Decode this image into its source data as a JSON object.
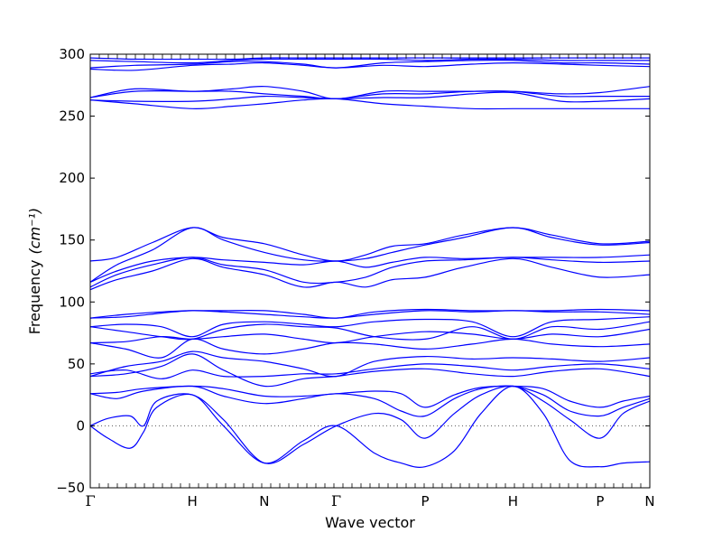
{
  "chart_data": {
    "type": "line",
    "title": "",
    "xlabel": "Wave vector",
    "ylabel": "Frequency",
    "ylabel_unit": "(cm⁻¹)",
    "ylim": [
      -50,
      300
    ],
    "yticks": [
      -50,
      0,
      50,
      100,
      150,
      200,
      250,
      300
    ],
    "xlim": [
      0,
      6.3
    ],
    "grid": false,
    "legend": "none",
    "line_color": "#0000ff",
    "zero_line": {
      "y": 0,
      "style": "dotted"
    },
    "symmetry_points": [
      {
        "label": "Γ",
        "x": 0.0
      },
      {
        "label": "H",
        "x": 1.15
      },
      {
        "label": "N",
        "x": 1.96
      },
      {
        "label": "Γ",
        "x": 2.77
      },
      {
        "label": "P",
        "x": 3.77
      },
      {
        "label": "H",
        "x": 4.76
      },
      {
        "label": "P",
        "x": 5.74
      },
      {
        "label": "N",
        "x": 6.3
      }
    ],
    "series": [
      {
        "x": [
          0,
          0.2,
          0.45,
          0.6,
          0.75,
          1.15,
          1.5,
          1.96,
          2.4,
          2.77,
          3.2,
          3.5,
          3.77,
          4.1,
          4.4,
          4.76,
          5.1,
          5.4,
          5.74,
          6.0,
          6.3
        ],
        "y": [
          0,
          -10,
          -18,
          -5,
          15,
          25,
          0,
          -30,
          -12,
          0,
          -22,
          -30,
          -33,
          -20,
          10,
          32,
          10,
          -28,
          -33,
          -30,
          -29
        ]
      },
      {
        "x": [
          0,
          0.2,
          0.45,
          0.6,
          0.75,
          1.15,
          1.5,
          1.96,
          2.4,
          2.77,
          3.2,
          3.5,
          3.77,
          4.1,
          4.4,
          4.76,
          5.1,
          5.4,
          5.74,
          6.0,
          6.3
        ],
        "y": [
          0,
          6,
          8,
          0,
          20,
          25,
          5,
          -30,
          -15,
          0,
          10,
          5,
          -10,
          10,
          25,
          32,
          20,
          5,
          -10,
          10,
          20
        ]
      },
      {
        "x": [
          0,
          0.3,
          0.6,
          1.15,
          1.5,
          1.96,
          2.4,
          2.77,
          3.2,
          3.5,
          3.77,
          4.1,
          4.4,
          4.76,
          5.1,
          5.4,
          5.74,
          6.0,
          6.3
        ],
        "y": [
          26,
          22,
          28,
          32,
          24,
          18,
          22,
          26,
          22,
          12,
          8,
          22,
          30,
          32,
          25,
          12,
          8,
          15,
          22
        ]
      },
      {
        "x": [
          0,
          0.3,
          0.6,
          1.15,
          1.5,
          1.96,
          2.4,
          2.77,
          3.2,
          3.5,
          3.77,
          4.1,
          4.4,
          4.76,
          5.1,
          5.4,
          5.74,
          6.0,
          6.3
        ],
        "y": [
          26,
          27,
          30,
          32,
          30,
          24,
          24,
          26,
          28,
          26,
          15,
          25,
          31,
          32,
          30,
          20,
          15,
          20,
          24
        ]
      },
      {
        "x": [
          0,
          0.4,
          0.8,
          1.15,
          1.5,
          1.96,
          2.4,
          2.77,
          3.2,
          3.77,
          4.3,
          4.76,
          5.2,
          5.74,
          6.3
        ],
        "y": [
          40,
          42,
          48,
          58,
          45,
          32,
          38,
          40,
          44,
          46,
          42,
          40,
          44,
          46,
          40
        ]
      },
      {
        "x": [
          0,
          0.4,
          0.8,
          1.15,
          1.5,
          1.96,
          2.4,
          2.77,
          3.2,
          3.77,
          4.3,
          4.76,
          5.2,
          5.74,
          6.3
        ],
        "y": [
          42,
          45,
          38,
          45,
          40,
          40,
          42,
          42,
          46,
          50,
          48,
          45,
          48,
          50,
          46
        ]
      },
      {
        "x": [
          0,
          0.4,
          0.8,
          1.15,
          1.5,
          1.96,
          2.4,
          2.77,
          3.2,
          3.77,
          4.3,
          4.76,
          5.2,
          5.74,
          6.3
        ],
        "y": [
          40,
          48,
          52,
          60,
          55,
          52,
          46,
          40,
          52,
          56,
          54,
          55,
          54,
          52,
          55
        ]
      },
      {
        "x": [
          0,
          0.4,
          0.8,
          1.15,
          1.5,
          1.96,
          2.4,
          2.77,
          3.2,
          3.77,
          4.3,
          4.76,
          5.2,
          5.74,
          6.3
        ],
        "y": [
          67,
          62,
          55,
          70,
          62,
          58,
          62,
          67,
          66,
          62,
          66,
          70,
          66,
          64,
          66
        ]
      },
      {
        "x": [
          0,
          0.4,
          0.8,
          1.15,
          1.5,
          1.96,
          2.4,
          2.77,
          3.2,
          3.77,
          4.3,
          4.76,
          5.2,
          5.74,
          6.3
        ],
        "y": [
          67,
          68,
          72,
          70,
          72,
          74,
          70,
          67,
          72,
          76,
          74,
          70,
          74,
          72,
          78
        ]
      },
      {
        "x": [
          0,
          0.4,
          0.8,
          1.15,
          1.5,
          1.96,
          2.4,
          2.77,
          3.2,
          3.77,
          4.3,
          4.76,
          5.2,
          5.74,
          6.3
        ],
        "y": [
          80,
          76,
          72,
          70,
          78,
          82,
          80,
          79,
          72,
          70,
          80,
          70,
          80,
          78,
          84
        ]
      },
      {
        "x": [
          0,
          0.4,
          0.8,
          1.15,
          1.5,
          1.96,
          2.4,
          2.77,
          3.2,
          3.77,
          4.3,
          4.76,
          5.2,
          5.74,
          6.3
        ],
        "y": [
          80,
          82,
          80,
          72,
          82,
          84,
          82,
          80,
          84,
          86,
          84,
          72,
          84,
          86,
          88
        ]
      },
      {
        "x": [
          0,
          0.4,
          0.8,
          1.15,
          1.5,
          1.96,
          2.4,
          2.77,
          3.2,
          3.77,
          4.3,
          4.76,
          5.2,
          5.74,
          6.3
        ],
        "y": [
          87,
          88,
          91,
          93,
          92,
          90,
          88,
          87,
          90,
          93,
          92,
          93,
          92,
          92,
          90
        ]
      },
      {
        "x": [
          0,
          0.4,
          0.8,
          1.15,
          1.5,
          1.96,
          2.4,
          2.77,
          3.2,
          3.77,
          4.3,
          4.76,
          5.2,
          5.74,
          6.3
        ],
        "y": [
          87,
          90,
          92,
          93,
          93,
          93,
          90,
          87,
          92,
          94,
          93,
          93,
          93,
          94,
          93
        ]
      },
      {
        "x": [
          0,
          0.3,
          0.7,
          1.15,
          1.5,
          1.96,
          2.4,
          2.77,
          3.1,
          3.4,
          3.77,
          4.2,
          4.76,
          5.2,
          5.74,
          6.3
        ],
        "y": [
          110,
          118,
          125,
          135,
          128,
          122,
          112,
          116,
          112,
          118,
          120,
          128,
          135,
          128,
          120,
          122
        ]
      },
      {
        "x": [
          0,
          0.3,
          0.7,
          1.15,
          1.5,
          1.96,
          2.4,
          2.77,
          3.1,
          3.4,
          3.77,
          4.2,
          4.76,
          5.2,
          5.74,
          6.3
        ],
        "y": [
          112,
          122,
          130,
          136,
          130,
          126,
          116,
          116,
          120,
          128,
          133,
          134,
          136,
          134,
          132,
          133
        ]
      },
      {
        "x": [
          0,
          0.3,
          0.7,
          1.15,
          1.5,
          1.96,
          2.4,
          2.77,
          3.1,
          3.4,
          3.77,
          4.2,
          4.76,
          5.2,
          5.74,
          6.3
        ],
        "y": [
          116,
          125,
          133,
          136,
          134,
          132,
          130,
          133,
          128,
          132,
          136,
          135,
          136,
          136,
          136,
          138
        ]
      },
      {
        "x": [
          0,
          0.3,
          0.7,
          1.15,
          1.5,
          1.96,
          2.4,
          2.77,
          3.1,
          3.4,
          3.77,
          4.2,
          4.76,
          5.2,
          5.74,
          6.3
        ],
        "y": [
          116,
          130,
          142,
          160,
          150,
          140,
          134,
          133,
          135,
          140,
          146,
          152,
          160,
          152,
          146,
          148
        ]
      },
      {
        "x": [
          0,
          0.3,
          0.7,
          1.15,
          1.5,
          1.96,
          2.4,
          2.77,
          3.1,
          3.4,
          3.77,
          4.2,
          4.76,
          5.2,
          5.74,
          6.3
        ],
        "y": [
          133,
          136,
          148,
          160,
          152,
          147,
          138,
          133,
          138,
          145,
          147,
          154,
          160,
          154,
          147,
          149
        ]
      },
      {
        "x": [
          0,
          0.5,
          1.15,
          1.6,
          1.96,
          2.4,
          2.77,
          3.3,
          3.77,
          4.3,
          4.76,
          5.3,
          5.74,
          6.3
        ],
        "y": [
          263,
          260,
          256,
          258,
          260,
          263,
          264,
          260,
          258,
          256,
          256,
          256,
          256,
          256
        ]
      },
      {
        "x": [
          0,
          0.5,
          1.15,
          1.6,
          1.96,
          2.4,
          2.77,
          3.3,
          3.77,
          4.3,
          4.76,
          5.3,
          5.74,
          6.3
        ],
        "y": [
          263,
          262,
          262,
          264,
          266,
          265,
          264,
          265,
          265,
          268,
          269,
          262,
          262,
          264
        ]
      },
      {
        "x": [
          0,
          0.5,
          1.15,
          1.6,
          1.96,
          2.4,
          2.77,
          3.3,
          3.77,
          4.3,
          4.76,
          5.3,
          5.74,
          6.3
        ],
        "y": [
          265,
          270,
          270,
          270,
          268,
          266,
          264,
          268,
          268,
          270,
          270,
          266,
          266,
          266
        ]
      },
      {
        "x": [
          0,
          0.5,
          1.15,
          1.6,
          1.96,
          2.4,
          2.77,
          3.3,
          3.77,
          4.3,
          4.76,
          5.3,
          5.74,
          6.3
        ],
        "y": [
          265,
          272,
          270,
          272,
          274,
          270,
          264,
          270,
          270,
          270,
          270,
          268,
          269,
          274
        ]
      },
      {
        "x": [
          0,
          0.5,
          1.15,
          1.6,
          1.96,
          2.4,
          2.77,
          3.3,
          3.77,
          4.3,
          4.76,
          5.3,
          5.74,
          6.3
        ],
        "y": [
          288,
          287,
          291,
          292,
          293,
          291,
          289,
          291,
          290,
          292,
          293,
          292,
          291,
          290
        ]
      },
      {
        "x": [
          0,
          0.5,
          1.15,
          1.6,
          1.96,
          2.4,
          2.77,
          3.3,
          3.77,
          4.3,
          4.76,
          5.3,
          5.74,
          6.3
        ],
        "y": [
          289,
          291,
          292,
          294,
          294,
          292,
          289,
          293,
          294,
          295,
          295,
          293,
          293,
          292
        ]
      },
      {
        "x": [
          0,
          0.5,
          1.15,
          1.6,
          1.96,
          2.4,
          2.77,
          3.3,
          3.77,
          4.3,
          4.76,
          5.3,
          5.74,
          6.3
        ],
        "y": [
          295,
          294,
          293,
          295,
          296,
          296,
          296,
          296,
          295,
          296,
          296,
          295,
          295,
          295
        ]
      },
      {
        "x": [
          0,
          0.5,
          1.15,
          1.6,
          1.96,
          2.4,
          2.77,
          3.3,
          3.77,
          4.3,
          4.76,
          5.3,
          5.74,
          6.3
        ],
        "y": [
          297,
          296,
          296,
          296,
          297,
          297,
          297,
          297,
          297,
          297,
          297,
          297,
          297,
          297
        ]
      }
    ]
  }
}
